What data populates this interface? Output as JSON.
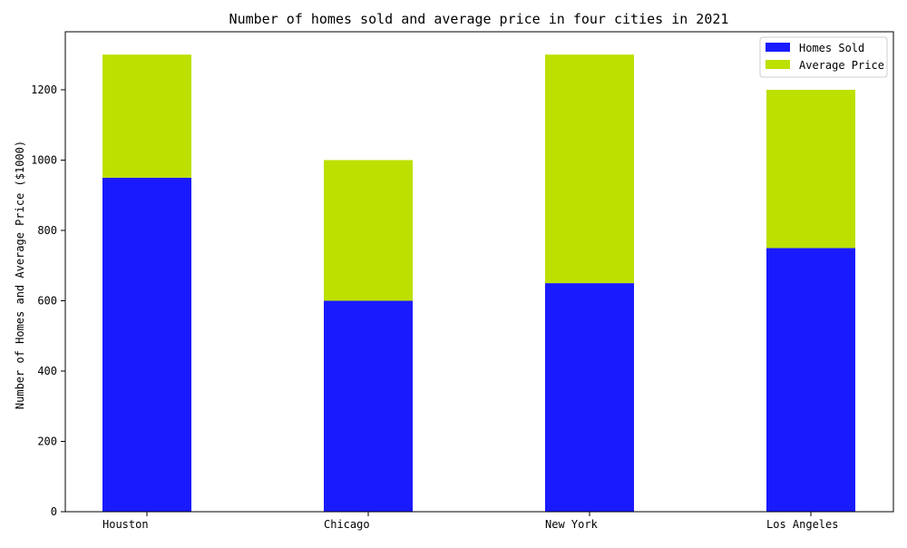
{
  "chart_data": {
    "type": "bar",
    "stacked": true,
    "title": "Number of homes sold and average price in four cities in 2021",
    "xlabel": "",
    "ylabel": "Number of Homes and Average Price ($1000)",
    "categories": [
      "Houston",
      "Chicago",
      "New York",
      "Los Angeles"
    ],
    "series": [
      {
        "name": "Homes Sold",
        "values": [
          950,
          600,
          650,
          750
        ],
        "color": "#1a1aff"
      },
      {
        "name": "Average Price",
        "values": [
          350,
          400,
          650,
          450
        ],
        "color": "#bde000"
      }
    ],
    "ylim": [
      0,
      1365
    ],
    "yticks": [
      0,
      200,
      400,
      600,
      800,
      1000,
      1200
    ],
    "grid": false,
    "legend_position": "top-right"
  }
}
